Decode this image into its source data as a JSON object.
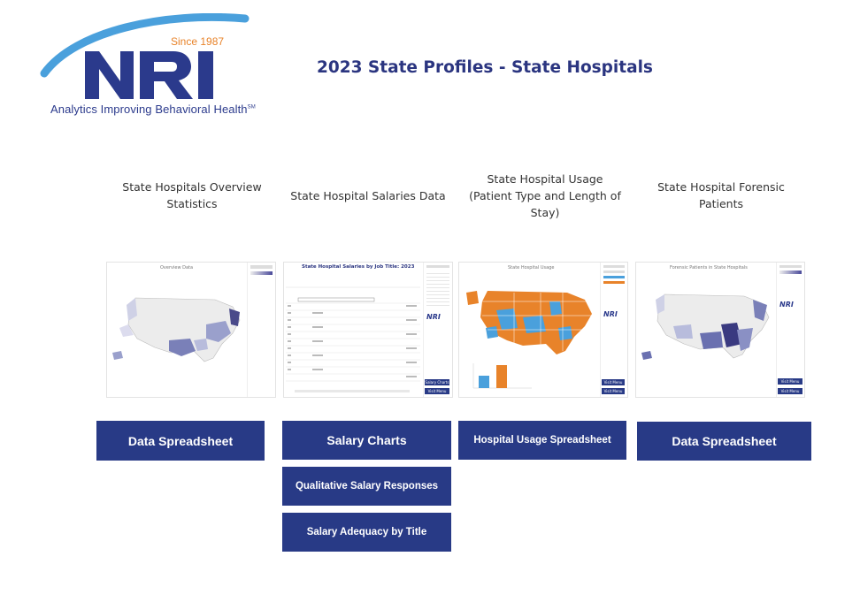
{
  "header": {
    "logo_since": "Since 1987",
    "logo_text": "NRI",
    "logo_tagline": "Analytics Improving Behavioral Health",
    "logo_tagline_mark": "SM",
    "page_title": "2023 State Profiles - State Hospitals"
  },
  "cards": [
    {
      "title_lines": [
        "State Hospitals Overview",
        "Statistics"
      ],
      "thumb_caption": "Overview Data"
    },
    {
      "title_lines": [
        "State Hospital Salaries Data"
      ],
      "thumb_caption": "State Hospital Salaries by Job Title: 2023"
    },
    {
      "title_lines": [
        "State Hospital Usage",
        "(Patient Type and Length of",
        "Stay)"
      ],
      "thumb_caption": "State Hospital Usage"
    },
    {
      "title_lines": [
        "State Hospital Forensic",
        "Patients"
      ],
      "thumb_caption": "Forensic Patients in State Hospitals"
    }
  ],
  "buttons": {
    "data_spreadsheet_1": "Data Spreadsheet",
    "salary_charts": "Salary Charts",
    "qualitative_salary": "Qualitative Salary Responses",
    "salary_adequacy": "Salary Adequacy by Title",
    "hospital_usage_spreadsheet": "Hospital Usage Spreadsheet",
    "data_spreadsheet_2": "Data Spreadsheet"
  },
  "thumb_buttons": {
    "salary_charts": "Salary Charts",
    "visit_menu": "Visit Menu"
  },
  "colors": {
    "brand_blue": "#283a86",
    "logo_orange": "#e8832a",
    "arc_blue": "#4aa0dc",
    "map_orange": "#e8832a",
    "map_blue": "#4aa0dc"
  }
}
